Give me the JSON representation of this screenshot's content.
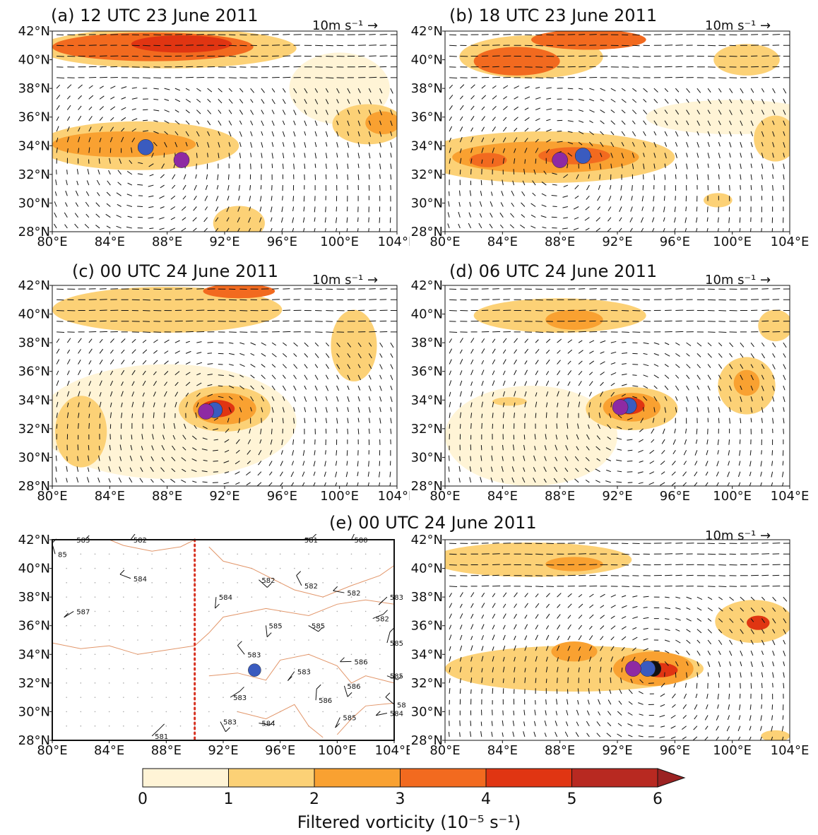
{
  "panels": [
    {
      "id": "a",
      "title": "(a) 12 UTC 23 June 2011",
      "scale": "10m s⁻¹ →",
      "blobs": [
        {
          "cx": 88,
          "cy": 40.8,
          "rx": 9,
          "ry": 1.4,
          "level": 1
        },
        {
          "cx": 87,
          "cy": 40.9,
          "rx": 7,
          "ry": 1.0,
          "level": 3
        },
        {
          "cx": 89,
          "cy": 41.1,
          "rx": 3.5,
          "ry": 0.6,
          "level": 4
        },
        {
          "cx": 86,
          "cy": 34.0,
          "rx": 7,
          "ry": 1.7,
          "level": 1
        },
        {
          "cx": 85,
          "cy": 34.1,
          "rx": 5,
          "ry": 0.9,
          "level": 2
        },
        {
          "cx": 102,
          "cy": 35.5,
          "rx": 2.5,
          "ry": 1.4,
          "level": 1
        },
        {
          "cx": 103,
          "cy": 35.6,
          "rx": 1.2,
          "ry": 0.8,
          "level": 2
        },
        {
          "cx": 100,
          "cy": 38.0,
          "rx": 3.5,
          "ry": 2.5,
          "level": 0
        },
        {
          "cx": 93,
          "cy": 28.6,
          "rx": 1.8,
          "ry": 1.2,
          "level": 1
        }
      ],
      "markers": [
        {
          "lon": 86.5,
          "lat": 33.9,
          "color": "#3a5bbf"
        },
        {
          "lon": 89,
          "lat": 33.0,
          "color": "#8e2aa3"
        }
      ]
    },
    {
      "id": "b",
      "title": "(b) 18 UTC 23 June 2011",
      "scale": "10m s⁻¹ →",
      "blobs": [
        {
          "cx": 86,
          "cy": 40.2,
          "rx": 5,
          "ry": 1.5,
          "level": 1
        },
        {
          "cx": 85,
          "cy": 39.9,
          "rx": 3,
          "ry": 1.0,
          "level": 3
        },
        {
          "cx": 90,
          "cy": 41.4,
          "rx": 4,
          "ry": 0.7,
          "level": 3
        },
        {
          "cx": 101,
          "cy": 40.0,
          "rx": 2.3,
          "ry": 1.1,
          "level": 1
        },
        {
          "cx": 87,
          "cy": 33.2,
          "rx": 9,
          "ry": 1.8,
          "level": 1
        },
        {
          "cx": 87,
          "cy": 33.2,
          "rx": 6.5,
          "ry": 1.1,
          "level": 2
        },
        {
          "cx": 89,
          "cy": 33.3,
          "rx": 2.5,
          "ry": 0.6,
          "level": 3
        },
        {
          "cx": 83,
          "cy": 33.0,
          "rx": 1.3,
          "ry": 0.5,
          "level": 3
        },
        {
          "cx": 103,
          "cy": 34.5,
          "rx": 1.5,
          "ry": 1.6,
          "level": 1
        },
        {
          "cx": 100,
          "cy": 36.0,
          "rx": 6,
          "ry": 1.2,
          "level": 0
        },
        {
          "cx": 99,
          "cy": 30.2,
          "rx": 1.0,
          "ry": 0.5,
          "level": 1
        }
      ],
      "markers": [
        {
          "lon": 88,
          "lat": 33.0,
          "color": "#8e2aa3"
        },
        {
          "lon": 89.6,
          "lat": 33.3,
          "color": "#3a5bbf"
        }
      ]
    },
    {
      "id": "c",
      "title": "(c) 00 UTC 24 June 2011",
      "scale": "10m s⁻¹ →",
      "blobs": [
        {
          "cx": 88,
          "cy": 40.3,
          "rx": 8,
          "ry": 1.6,
          "level": 1
        },
        {
          "cx": 93,
          "cy": 41.6,
          "rx": 2.5,
          "ry": 0.5,
          "level": 3
        },
        {
          "cx": 101,
          "cy": 37.8,
          "rx": 1.6,
          "ry": 2.5,
          "level": 1
        },
        {
          "cx": 92,
          "cy": 33.4,
          "rx": 3.2,
          "ry": 1.6,
          "level": 1
        },
        {
          "cx": 92,
          "cy": 33.4,
          "rx": 2.2,
          "ry": 1.1,
          "level": 2
        },
        {
          "cx": 91.5,
          "cy": 33.4,
          "rx": 1.2,
          "ry": 0.6,
          "level": 4
        },
        {
          "cx": 82,
          "cy": 31.8,
          "rx": 1.8,
          "ry": 2.5,
          "level": 1
        },
        {
          "cx": 88,
          "cy": 32.5,
          "rx": 9,
          "ry": 4,
          "level": 0
        }
      ],
      "markers": [
        {
          "lon": 91.3,
          "lat": 33.3,
          "color": "#3a5bbf"
        },
        {
          "lon": 90.7,
          "lat": 33.2,
          "color": "#8e2aa3"
        }
      ]
    },
    {
      "id": "d",
      "title": "(d) 06 UTC 24 June 2011",
      "scale": "10m s⁻¹ →",
      "blobs": [
        {
          "cx": 88,
          "cy": 39.9,
          "rx": 6,
          "ry": 1.2,
          "level": 1
        },
        {
          "cx": 89,
          "cy": 39.6,
          "rx": 2,
          "ry": 0.7,
          "level": 2
        },
        {
          "cx": 103,
          "cy": 39.2,
          "rx": 1.2,
          "ry": 1.1,
          "level": 1
        },
        {
          "cx": 93,
          "cy": 33.4,
          "rx": 3.2,
          "ry": 1.5,
          "level": 1
        },
        {
          "cx": 93,
          "cy": 33.5,
          "rx": 2.0,
          "ry": 1.0,
          "level": 2
        },
        {
          "cx": 92.8,
          "cy": 33.6,
          "rx": 1.1,
          "ry": 0.6,
          "level": 4
        },
        {
          "cx": 101,
          "cy": 35.0,
          "rx": 2,
          "ry": 2.0,
          "level": 1
        },
        {
          "cx": 101,
          "cy": 35.2,
          "rx": 0.9,
          "ry": 0.9,
          "level": 2
        },
        {
          "cx": 84.5,
          "cy": 33.9,
          "rx": 1.2,
          "ry": 0.3,
          "level": 1
        },
        {
          "cx": 86,
          "cy": 31.5,
          "rx": 6,
          "ry": 3.5,
          "level": 0
        }
      ],
      "markers": [
        {
          "lon": 92.8,
          "lat": 33.6,
          "color": "#3a5bbf"
        },
        {
          "lon": 92.2,
          "lat": 33.5,
          "color": "#8e2aa3"
        }
      ]
    },
    {
      "id": "f",
      "title": "",
      "scale": "10m s⁻¹ →",
      "blobs": [
        {
          "cx": 86,
          "cy": 40.6,
          "rx": 7,
          "ry": 1.2,
          "level": 1
        },
        {
          "cx": 89,
          "cy": 40.3,
          "rx": 2,
          "ry": 0.5,
          "level": 2
        },
        {
          "cx": 101.5,
          "cy": 36.3,
          "rx": 2.7,
          "ry": 1.5,
          "level": 1
        },
        {
          "cx": 101.8,
          "cy": 36.2,
          "rx": 0.8,
          "ry": 0.5,
          "level": 4
        },
        {
          "cx": 89,
          "cy": 33.0,
          "rx": 9,
          "ry": 1.6,
          "level": 1
        },
        {
          "cx": 89,
          "cy": 34.2,
          "rx": 1.6,
          "ry": 0.7,
          "level": 2
        },
        {
          "cx": 94.5,
          "cy": 33.0,
          "rx": 2.8,
          "ry": 1.2,
          "level": 2
        },
        {
          "cx": 95,
          "cy": 32.9,
          "rx": 1.2,
          "ry": 0.5,
          "level": 4
        },
        {
          "cx": 103,
          "cy": 28.3,
          "rx": 1.0,
          "ry": 0.4,
          "level": 1
        }
      ],
      "markers": [
        {
          "lon": 94.5,
          "lat": 33.0,
          "color": "#111111"
        },
        {
          "lon": 94.1,
          "lat": 33.0,
          "color": "#3a5bbf"
        },
        {
          "lon": 93.1,
          "lat": 33.0,
          "color": "#8e2aa3"
        }
      ]
    }
  ],
  "station_map": {
    "title": "(e) 00 UTC 24 June 2011",
    "stations": [
      {
        "lon": 81.5,
        "lat": 42.0,
        "label": "583"
      },
      {
        "lon": 85.5,
        "lat": 42.0,
        "label": "582"
      },
      {
        "lon": 80.2,
        "lat": 41.0,
        "label": "85"
      },
      {
        "lon": 85.5,
        "lat": 39.3,
        "label": "584"
      },
      {
        "lon": 81.5,
        "lat": 37.0,
        "label": "587"
      },
      {
        "lon": 91.5,
        "lat": 38.0,
        "label": "584"
      },
      {
        "lon": 94.5,
        "lat": 39.2,
        "label": "582"
      },
      {
        "lon": 97.5,
        "lat": 42.0,
        "label": "581"
      },
      {
        "lon": 101.0,
        "lat": 42.0,
        "label": "580"
      },
      {
        "lon": 97.5,
        "lat": 38.8,
        "label": "582"
      },
      {
        "lon": 100.5,
        "lat": 38.3,
        "label": "582"
      },
      {
        "lon": 103.5,
        "lat": 38.0,
        "label": "583"
      },
      {
        "lon": 95.0,
        "lat": 36.0,
        "label": "585"
      },
      {
        "lon": 98.0,
        "lat": 36.0,
        "label": "585"
      },
      {
        "lon": 102.5,
        "lat": 36.5,
        "label": "582"
      },
      {
        "lon": 103.5,
        "lat": 34.8,
        "label": "585"
      },
      {
        "lon": 93.5,
        "lat": 34.0,
        "label": "583"
      },
      {
        "lon": 101.0,
        "lat": 33.5,
        "label": "586"
      },
      {
        "lon": 97.0,
        "lat": 32.8,
        "label": "583"
      },
      {
        "lon": 100.5,
        "lat": 31.8,
        "label": "586"
      },
      {
        "lon": 103.5,
        "lat": 32.5,
        "label": "585"
      },
      {
        "lon": 92.5,
        "lat": 31.0,
        "label": "583"
      },
      {
        "lon": 98.5,
        "lat": 30.8,
        "label": "586"
      },
      {
        "lon": 104.0,
        "lat": 30.5,
        "label": "58"
      },
      {
        "lon": 103.5,
        "lat": 29.9,
        "label": "584"
      },
      {
        "lon": 100.2,
        "lat": 29.6,
        "label": "585"
      },
      {
        "lon": 91.8,
        "lat": 29.3,
        "label": "583"
      },
      {
        "lon": 94.5,
        "lat": 29.2,
        "label": "584"
      },
      {
        "lon": 87.0,
        "lat": 28.3,
        "label": "581"
      }
    ],
    "marker": {
      "lon": 94.2,
      "lat": 32.9,
      "color": "#3a5bbf"
    },
    "dotted_line_lon": 90
  },
  "axes": {
    "lon_ticks": [
      "80°E",
      "84°E",
      "88°E",
      "92°E",
      "96°E",
      "100°E",
      "104°E"
    ],
    "lat_ticks": [
      "28°N",
      "30°N",
      "32°N",
      "34°N",
      "36°N",
      "38°N",
      "40°N",
      "42°N"
    ],
    "lon_range": [
      80,
      104
    ],
    "lat_range": [
      28,
      42
    ]
  },
  "colorbar": {
    "ticks": [
      "0",
      "1",
      "2",
      "3",
      "4",
      "5",
      "6"
    ],
    "colors": [
      "#fff4d6",
      "#fcd176",
      "#f9a131",
      "#f26a1f",
      "#e03512",
      "#b82921",
      "#9b2222"
    ],
    "title": "Filtered vorticity (10⁻⁵ s⁻¹)"
  }
}
